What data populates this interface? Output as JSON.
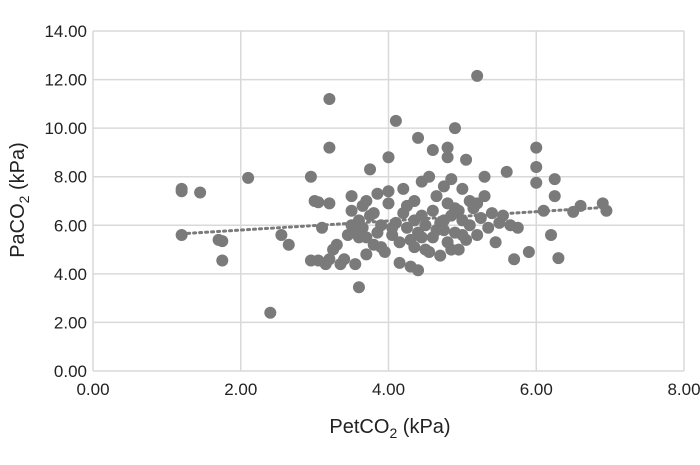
{
  "chart_data": {
    "type": "scatter",
    "xlabel": "PetCO",
    "xlabel_sub": "2",
    "xlabel_unit": " (kPa)",
    "ylabel": "PaCO",
    "ylabel_sub": "2",
    "ylabel_unit": " (kPa)",
    "xlim": [
      0,
      8
    ],
    "ylim": [
      0,
      14
    ],
    "x_ticks": [
      "0.00",
      "2.00",
      "4.00",
      "6.00",
      "8.00"
    ],
    "y_ticks": [
      "0.00",
      "2.00",
      "4.00",
      "6.00",
      "8.00",
      "10.00",
      "12.00",
      "14.00"
    ],
    "grid": true,
    "legend": "none",
    "marker_color": "#7a7a7a",
    "trendline": {
      "style": "dotted",
      "color": "#7a7a7a",
      "x": [
        1.2,
        7.0
      ],
      "y": [
        5.65,
        6.75
      ]
    },
    "points": [
      [
        1.2,
        7.5
      ],
      [
        1.2,
        7.4
      ],
      [
        1.45,
        7.35
      ],
      [
        1.2,
        5.6
      ],
      [
        1.7,
        5.4
      ],
      [
        1.75,
        5.35
      ],
      [
        1.75,
        4.55
      ],
      [
        2.1,
        7.95
      ],
      [
        2.4,
        2.4
      ],
      [
        2.55,
        5.6
      ],
      [
        2.65,
        5.2
      ],
      [
        2.95,
        8.0
      ],
      [
        3.0,
        7.0
      ],
      [
        3.05,
        6.95
      ],
      [
        2.95,
        4.55
      ],
      [
        3.05,
        4.55
      ],
      [
        3.1,
        5.9
      ],
      [
        3.15,
        4.4
      ],
      [
        3.2,
        4.6
      ],
      [
        3.2,
        11.2
      ],
      [
        3.2,
        9.2
      ],
      [
        3.2,
        6.9
      ],
      [
        3.25,
        5.0
      ],
      [
        3.3,
        5.2
      ],
      [
        3.35,
        4.4
      ],
      [
        3.4,
        4.6
      ],
      [
        3.45,
        5.6
      ],
      [
        3.5,
        6.0
      ],
      [
        3.5,
        6.6
      ],
      [
        3.5,
        7.2
      ],
      [
        3.55,
        4.4
      ],
      [
        3.55,
        5.8
      ],
      [
        3.6,
        3.45
      ],
      [
        3.6,
        5.5
      ],
      [
        3.6,
        6.2
      ],
      [
        3.65,
        6.8
      ],
      [
        3.65,
        5.9
      ],
      [
        3.7,
        7.0
      ],
      [
        3.7,
        4.8
      ],
      [
        3.75,
        8.3
      ],
      [
        3.75,
        6.4
      ],
      [
        3.8,
        5.2
      ],
      [
        3.8,
        6.5
      ],
      [
        3.85,
        7.3
      ],
      [
        3.85,
        5.7
      ],
      [
        3.9,
        6.0
      ],
      [
        3.95,
        4.9
      ],
      [
        4.0,
        8.8
      ],
      [
        4.0,
        6.9
      ],
      [
        4.0,
        7.4
      ],
      [
        4.05,
        5.6
      ],
      [
        4.1,
        10.3
      ],
      [
        4.1,
        6.1
      ],
      [
        4.15,
        5.3
      ],
      [
        4.15,
        4.45
      ],
      [
        4.2,
        6.5
      ],
      [
        4.2,
        7.5
      ],
      [
        4.25,
        5.9
      ],
      [
        4.3,
        5.4
      ],
      [
        4.3,
        4.3
      ],
      [
        4.35,
        7.0
      ],
      [
        4.35,
        6.2
      ],
      [
        4.4,
        9.6
      ],
      [
        4.4,
        5.7
      ],
      [
        4.4,
        4.15
      ],
      [
        4.45,
        7.8
      ],
      [
        4.45,
        6.4
      ],
      [
        4.5,
        5.0
      ],
      [
        4.5,
        6.0
      ],
      [
        4.55,
        8.0
      ],
      [
        4.6,
        9.1
      ],
      [
        4.6,
        6.6
      ],
      [
        4.6,
        5.5
      ],
      [
        4.65,
        7.2
      ],
      [
        4.7,
        6.1
      ],
      [
        4.7,
        4.75
      ],
      [
        4.75,
        7.6
      ],
      [
        4.75,
        5.8
      ],
      [
        4.8,
        9.2
      ],
      [
        4.8,
        8.8
      ],
      [
        4.8,
        6.9
      ],
      [
        4.8,
        5.3
      ],
      [
        4.85,
        6.4
      ],
      [
        4.85,
        7.9
      ],
      [
        4.9,
        5.7
      ],
      [
        4.9,
        10.0
      ],
      [
        4.95,
        6.6
      ],
      [
        4.95,
        5.0
      ],
      [
        5.0,
        7.5
      ],
      [
        5.0,
        6.2
      ],
      [
        5.05,
        8.7
      ],
      [
        5.05,
        5.4
      ],
      [
        5.1,
        7.0
      ],
      [
        5.1,
        6.0
      ],
      [
        5.15,
        6.7
      ],
      [
        5.2,
        12.15
      ],
      [
        5.2,
        5.6
      ],
      [
        5.25,
        6.3
      ],
      [
        5.3,
        8.0
      ],
      [
        5.3,
        7.2
      ],
      [
        5.35,
        5.9
      ],
      [
        5.4,
        6.5
      ],
      [
        5.45,
        5.3
      ],
      [
        5.5,
        6.1
      ],
      [
        5.55,
        6.4
      ],
      [
        5.6,
        8.2
      ],
      [
        5.65,
        6.0
      ],
      [
        5.7,
        4.6
      ],
      [
        5.75,
        5.9
      ],
      [
        5.9,
        4.9
      ],
      [
        6.0,
        9.2
      ],
      [
        6.0,
        8.4
      ],
      [
        6.0,
        7.75
      ],
      [
        6.1,
        6.6
      ],
      [
        6.2,
        5.6
      ],
      [
        6.25,
        7.9
      ],
      [
        6.25,
        7.2
      ],
      [
        6.3,
        4.65
      ],
      [
        6.5,
        6.55
      ],
      [
        6.6,
        6.8
      ],
      [
        6.9,
        6.9
      ],
      [
        6.95,
        6.6
      ],
      [
        3.9,
        5.1
      ],
      [
        4.05,
        5.9
      ],
      [
        4.25,
        6.8
      ],
      [
        4.45,
        5.5
      ],
      [
        4.55,
        4.9
      ],
      [
        4.65,
        5.8
      ],
      [
        4.75,
        6.2
      ],
      [
        4.9,
        6.7
      ],
      [
        5.0,
        5.6
      ],
      [
        5.2,
        6.9
      ],
      [
        3.6,
        6.0
      ],
      [
        3.7,
        5.5
      ],
      [
        4.35,
        5.1
      ],
      [
        4.85,
        5.0
      ]
    ]
  }
}
